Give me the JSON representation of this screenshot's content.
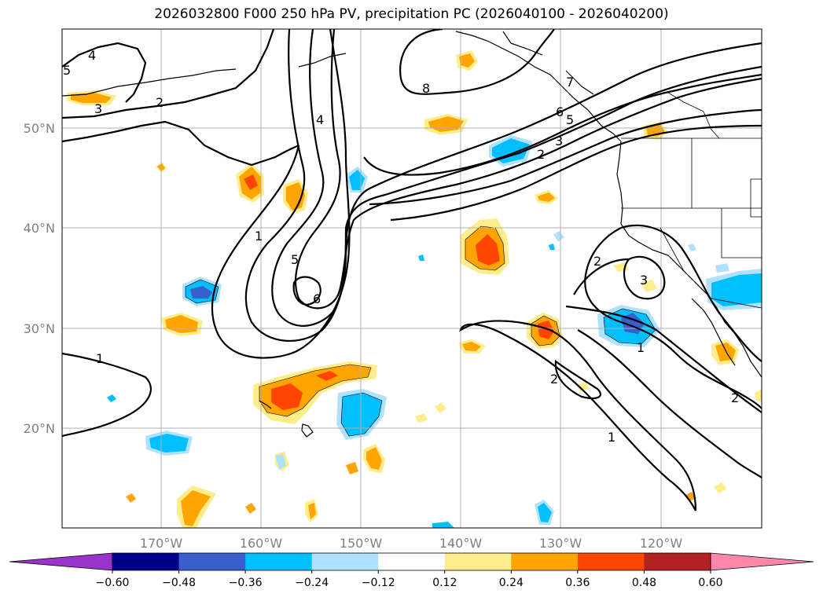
{
  "title": "2026032800 F000 250 hPa PV, precipitation PC (2026040100 - 2026040200)",
  "lat_labels": [
    "50°N",
    "40°N",
    "30°N",
    "20°N"
  ],
  "lon_labels": [
    "170°W",
    "160°W",
    "150°W",
    "140°W",
    "130°W",
    "120°W"
  ],
  "colorbar": {
    "labels": [
      "−0.60",
      "−0.48",
      "−0.36",
      "−0.24",
      "−0.12",
      "0.12",
      "0.24",
      "0.36",
      "0.48",
      "0.60"
    ],
    "colors": [
      "#9933cc",
      "#00008b",
      "#3a5fcd",
      "#00bfff",
      "#b0e2ff",
      "#ffffff",
      "#ffec8b",
      "#ffa500",
      "#ff4500",
      "#b22222",
      "#ff88aa"
    ]
  },
  "contour_labels": [
    "4",
    "5",
    "3",
    "2",
    "4",
    "8",
    "7",
    "6",
    "5",
    "3",
    "2",
    "1",
    "5",
    "6",
    "2",
    "3",
    "1",
    "1",
    "2",
    "1",
    "2"
  ],
  "colors": {
    "grid": "#b0b0b0",
    "contour": "#000000",
    "coast": "#000000"
  }
}
